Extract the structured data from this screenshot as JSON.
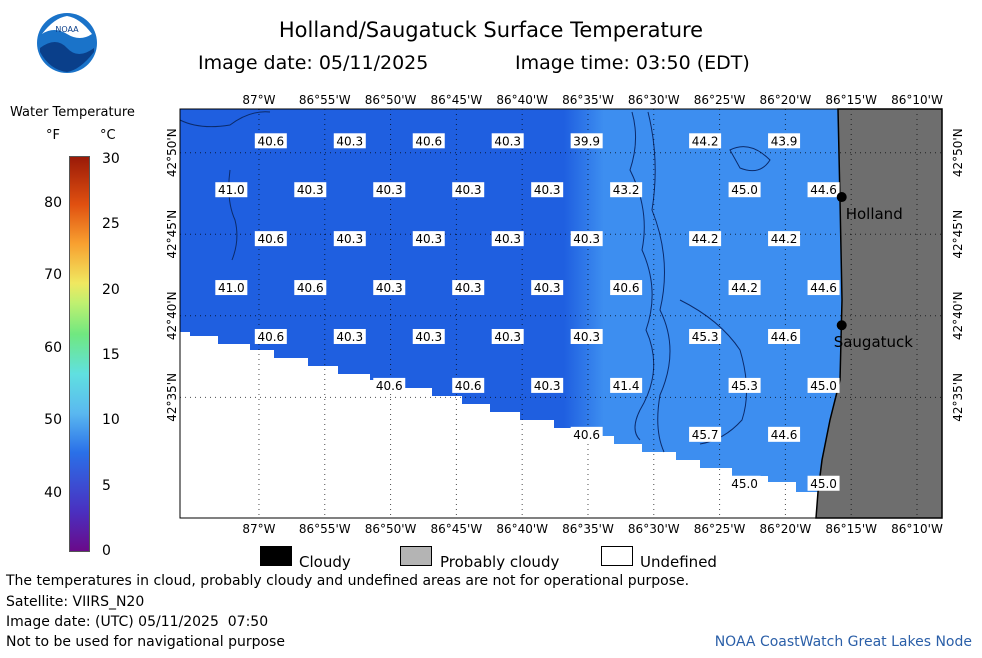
{
  "title": "Holland/Saugatuck Surface Temperature",
  "image_date": "Image date: 05/11/2025",
  "image_time": "Image time: 03:50 (EDT)",
  "logo_text": "NOAA",
  "legend": {
    "title": "Water Temperature",
    "unit_f": "°F",
    "unit_c": "°C",
    "f_ticks": [
      {
        "v": "80",
        "t": 80
      },
      {
        "v": "70",
        "t": 70
      },
      {
        "v": "60",
        "t": 60
      },
      {
        "v": "50",
        "t": 50
      },
      {
        "v": "40",
        "t": 40
      }
    ],
    "c_ticks": [
      {
        "v": "30",
        "t": 30
      },
      {
        "v": "25",
        "t": 25
      },
      {
        "v": "20",
        "t": 20
      },
      {
        "v": "15",
        "t": 15
      },
      {
        "v": "10",
        "t": 10
      },
      {
        "v": "5",
        "t": 5
      },
      {
        "v": "0",
        "t": 0
      }
    ]
  },
  "axes": {
    "lon_labels": [
      "87°W",
      "86°55'W",
      "86°50'W",
      "86°45'W",
      "86°40'W",
      "86°35'W",
      "86°30'W",
      "86°25'W",
      "86°20'W",
      "86°15'W",
      "86°10'W"
    ],
    "lat_labels": [
      "42°50'N",
      "42°45'N",
      "42°40'N",
      "42°35'N"
    ]
  },
  "places": [
    {
      "name": "Holland",
      "lat": 42.788,
      "lon": -86.262
    },
    {
      "name": "Saugatuck",
      "lat": 42.657,
      "lon": -86.262
    }
  ],
  "map_data": {
    "temperature_labels": [
      {
        "v": "40.6",
        "lat": 42.845,
        "lon": -86.985
      },
      {
        "v": "40.3",
        "lat": 42.845,
        "lon": -86.885
      },
      {
        "v": "40.6",
        "lat": 42.845,
        "lon": -86.785
      },
      {
        "v": "40.3",
        "lat": 42.845,
        "lon": -86.685
      },
      {
        "v": "39.9",
        "lat": 42.845,
        "lon": -86.585
      },
      {
        "v": "44.2",
        "lat": 42.845,
        "lon": -86.435
      },
      {
        "v": "43.9",
        "lat": 42.845,
        "lon": -86.335
      },
      {
        "v": "41.0",
        "lat": 42.795,
        "lon": -87.035
      },
      {
        "v": "40.3",
        "lat": 42.795,
        "lon": -86.935
      },
      {
        "v": "40.3",
        "lat": 42.795,
        "lon": -86.835
      },
      {
        "v": "40.3",
        "lat": 42.795,
        "lon": -86.735
      },
      {
        "v": "40.3",
        "lat": 42.795,
        "lon": -86.635
      },
      {
        "v": "43.2",
        "lat": 42.795,
        "lon": -86.535
      },
      {
        "v": "45.0",
        "lat": 42.795,
        "lon": -86.385
      },
      {
        "v": "44.6",
        "lat": 42.795,
        "lon": -86.285
      },
      {
        "v": "40.6",
        "lat": 42.745,
        "lon": -86.985
      },
      {
        "v": "40.3",
        "lat": 42.745,
        "lon": -86.885
      },
      {
        "v": "40.3",
        "lat": 42.745,
        "lon": -86.785
      },
      {
        "v": "40.3",
        "lat": 42.745,
        "lon": -86.685
      },
      {
        "v": "40.3",
        "lat": 42.745,
        "lon": -86.585
      },
      {
        "v": "44.2",
        "lat": 42.745,
        "lon": -86.435
      },
      {
        "v": "44.2",
        "lat": 42.745,
        "lon": -86.335
      },
      {
        "v": "41.0",
        "lat": 42.695,
        "lon": -87.035
      },
      {
        "v": "40.6",
        "lat": 42.695,
        "lon": -86.935
      },
      {
        "v": "40.3",
        "lat": 42.695,
        "lon": -86.835
      },
      {
        "v": "40.3",
        "lat": 42.695,
        "lon": -86.735
      },
      {
        "v": "40.3",
        "lat": 42.695,
        "lon": -86.635
      },
      {
        "v": "40.6",
        "lat": 42.695,
        "lon": -86.535
      },
      {
        "v": "44.2",
        "lat": 42.695,
        "lon": -86.385
      },
      {
        "v": "44.6",
        "lat": 42.695,
        "lon": -86.285
      },
      {
        "v": "40.6",
        "lat": 42.645,
        "lon": -86.985
      },
      {
        "v": "40.3",
        "lat": 42.645,
        "lon": -86.885
      },
      {
        "v": "40.3",
        "lat": 42.645,
        "lon": -86.785
      },
      {
        "v": "40.3",
        "lat": 42.645,
        "lon": -86.685
      },
      {
        "v": "40.3",
        "lat": 42.645,
        "lon": -86.585
      },
      {
        "v": "45.3",
        "lat": 42.645,
        "lon": -86.435
      },
      {
        "v": "44.6",
        "lat": 42.645,
        "lon": -86.335
      },
      {
        "v": "40.6",
        "lat": 42.595,
        "lon": -86.835
      },
      {
        "v": "40.6",
        "lat": 42.595,
        "lon": -86.735
      },
      {
        "v": "40.3",
        "lat": 42.595,
        "lon": -86.635
      },
      {
        "v": "41.4",
        "lat": 42.595,
        "lon": -86.535
      },
      {
        "v": "45.3",
        "lat": 42.595,
        "lon": -86.385
      },
      {
        "v": "45.0",
        "lat": 42.595,
        "lon": -86.285
      },
      {
        "v": "40.6",
        "lat": 42.545,
        "lon": -86.585
      },
      {
        "v": "45.7",
        "lat": 42.545,
        "lon": -86.435
      },
      {
        "v": "44.6",
        "lat": 42.545,
        "lon": -86.335
      },
      {
        "v": "45.0",
        "lat": 42.495,
        "lon": -86.385
      },
      {
        "v": "45.0",
        "lat": 42.495,
        "lon": -86.285
      }
    ]
  },
  "key": {
    "cloudy": "Cloudy",
    "probably_cloudy": "Probably cloudy",
    "undefined": "Undefined"
  },
  "footer": {
    "line1": "The temperatures in cloud, probably cloudy and undefined areas are not for operational purpose.",
    "line2": "Satellite: VIIRS_N20",
    "line3": "Image date: (UTC) 05/11/2025  07:50",
    "line4": "Not to be used for navigational purpose",
    "credit": "NOAA CoastWatch Great Lakes Node"
  },
  "colors": {
    "water_cold": "#1f5fe0",
    "water_warm": "#3d8ef0",
    "land": "#6e6e6e",
    "undefined": "#ffffff"
  }
}
